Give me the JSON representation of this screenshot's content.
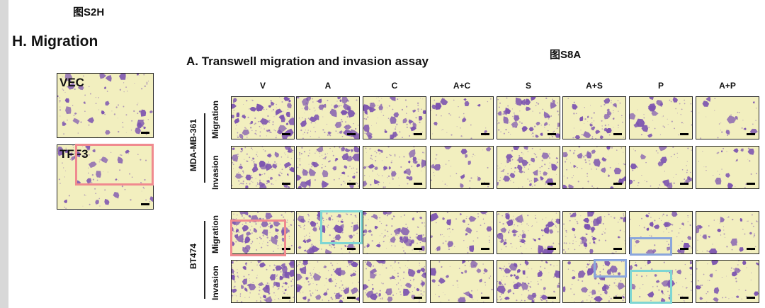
{
  "figure_tags": {
    "s2h": "图S2H",
    "s8a": "图S8A"
  },
  "panel_h": {
    "title": "H. Migration",
    "cells": [
      {
        "label": "VEC"
      },
      {
        "label": "TFF3"
      }
    ]
  },
  "panel_a": {
    "title": "A. Transwell migration and invasion assay",
    "columns": [
      "V",
      "A",
      "C",
      "A+C",
      "S",
      "A+S",
      "P",
      "A+P"
    ],
    "cell_lines": [
      {
        "name": "MDA-MB-361",
        "rows": [
          "Migration",
          "Invasion"
        ]
      },
      {
        "name": "BT474",
        "rows": [
          "Migration",
          "Invasion"
        ]
      }
    ]
  },
  "colors": {
    "background": "#f2efbf",
    "cells": "#7d55b0",
    "highlight_red": "#f08a8f",
    "highlight_cyan": "#7ed6d3",
    "highlight_blue": "#8aa6dc",
    "side_strip": "#d8d8d8"
  }
}
